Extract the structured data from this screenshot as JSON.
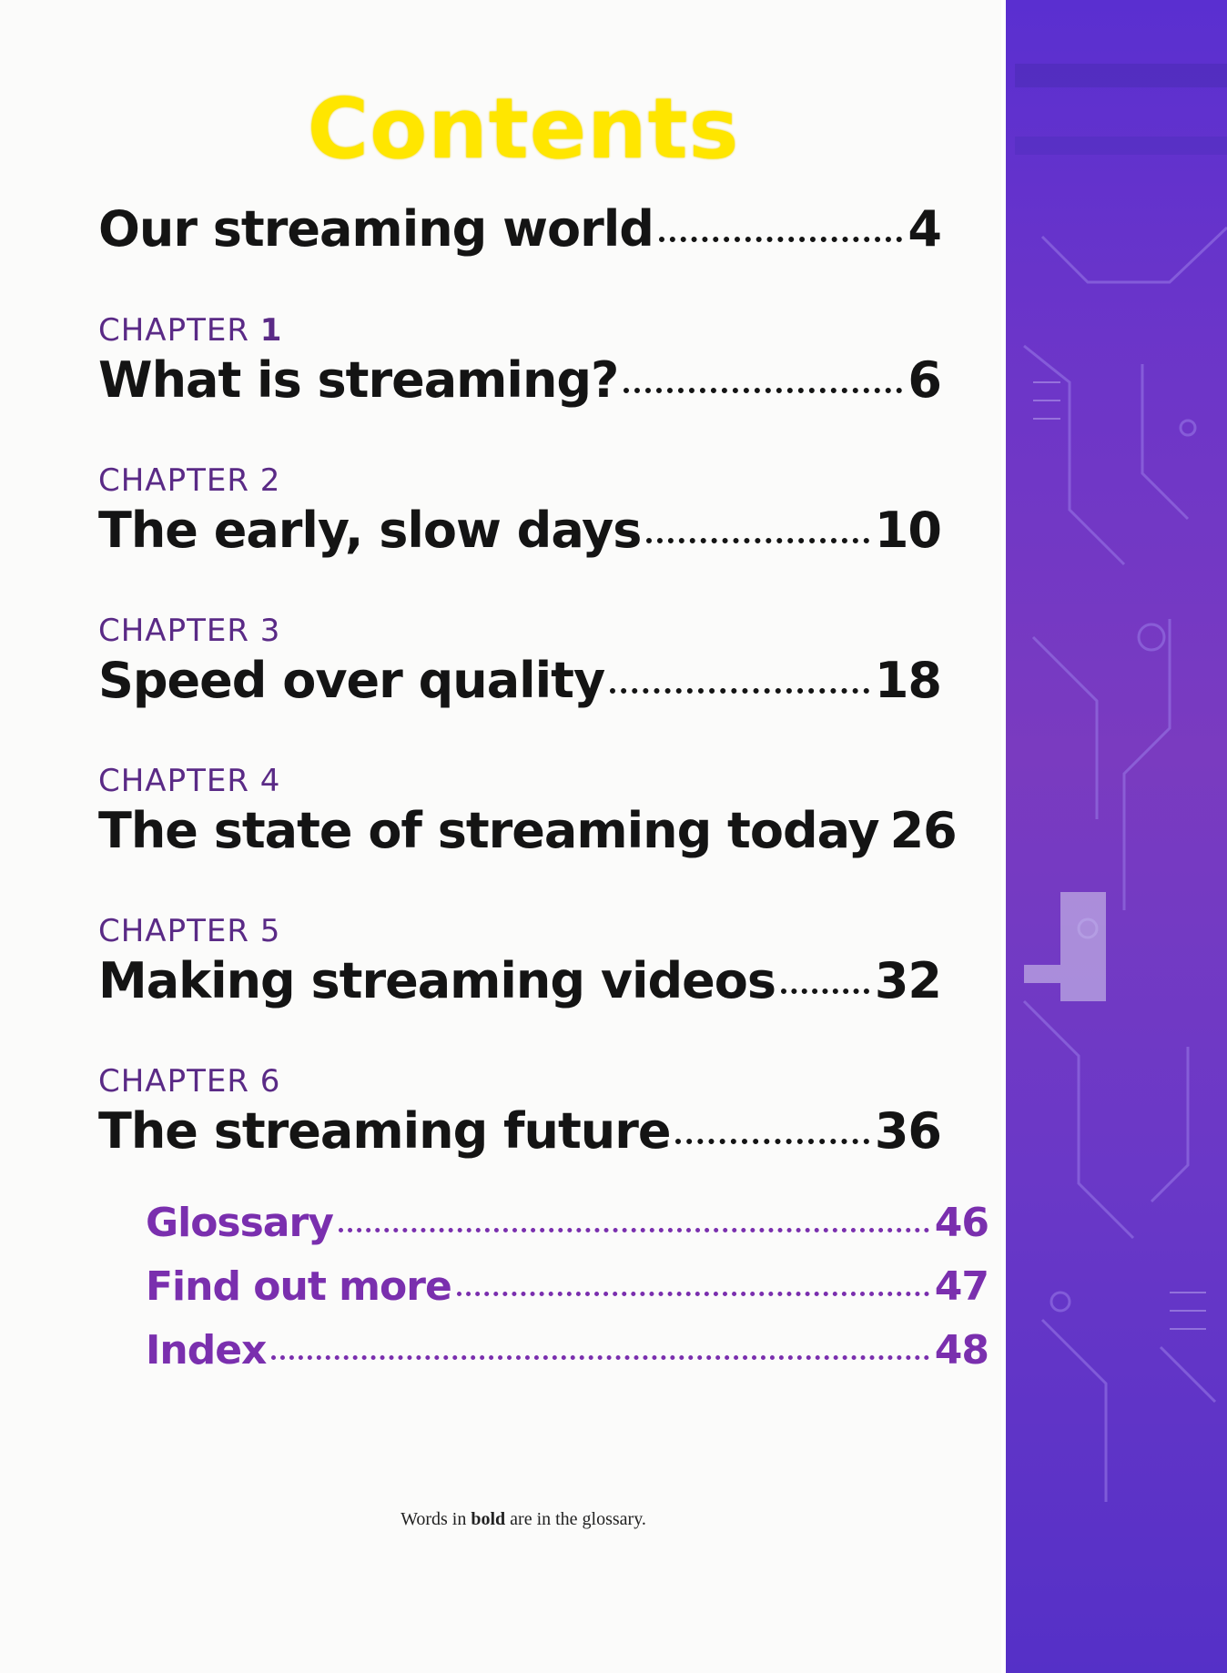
{
  "title": "Contents",
  "intro": {
    "label": "Our streaming world",
    "page": "4"
  },
  "chapters": [
    {
      "chapter": "CHAPTER",
      "number": "1",
      "label": "What is streaming?",
      "page": "6"
    },
    {
      "chapter": "CHAPTER",
      "number": "2",
      "label": "The early, slow days",
      "page": "10"
    },
    {
      "chapter": "CHAPTER",
      "number": "3",
      "label": "Speed over quality",
      "page": "18"
    },
    {
      "chapter": "CHAPTER",
      "number": "4",
      "label": "The state of streaming today",
      "page": "26"
    },
    {
      "chapter": "CHAPTER",
      "number": "5",
      "label": "Making streaming videos",
      "page": "32"
    },
    {
      "chapter": "CHAPTER",
      "number": "6",
      "label": "The streaming future",
      "page": "36"
    }
  ],
  "back_matter": [
    {
      "label": "Glossary",
      "page": "46"
    },
    {
      "label": "Find out more",
      "page": "47"
    },
    {
      "label": "Index",
      "page": "48"
    }
  ],
  "footnote": {
    "before": "Words in ",
    "bold": "bold",
    "after": " are in the glossary."
  },
  "colors": {
    "title": "#ffe600",
    "chapter_label": "#5a2a86",
    "back_matter": "#7a2fae",
    "side_panel": "#6b35c9"
  }
}
